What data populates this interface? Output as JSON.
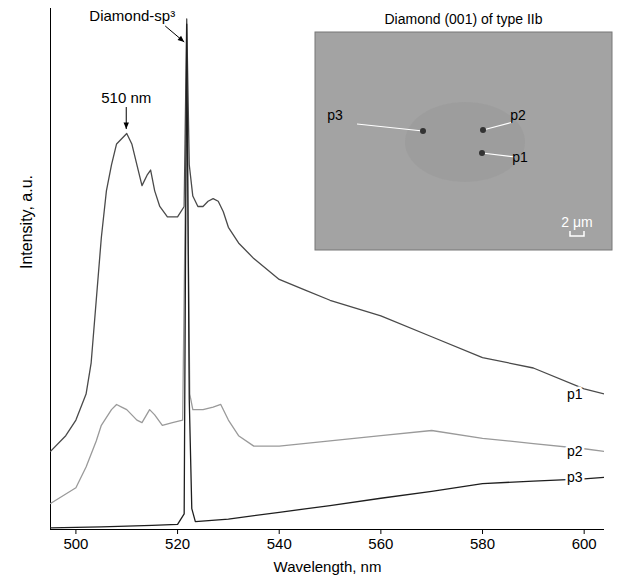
{
  "chart_data": {
    "type": "line",
    "x_label": "Wavelength, nm",
    "y_label": "Intensity, a.u.",
    "xlim": [
      495,
      604
    ],
    "xticks": [
      500,
      520,
      540,
      560,
      580,
      600
    ],
    "ylim": [
      0,
      100
    ],
    "tick_labels": "x",
    "series": [
      {
        "name": "p1",
        "color": "#4a4a4a",
        "x": [
          495,
          498,
          500,
          502,
          503,
          504,
          505,
          506,
          507,
          508,
          509,
          510,
          511,
          512,
          513,
          514,
          514.7,
          515.5,
          516.5,
          518,
          520,
          521.3,
          521.8,
          522.3,
          523,
          524,
          525,
          526,
          527,
          528,
          529,
          530,
          532,
          535,
          540,
          545,
          550,
          560,
          570,
          580,
          590,
          600,
          604
        ],
        "values": [
          15,
          18,
          21,
          26,
          32,
          44,
          56,
          65,
          70,
          74,
          75,
          76,
          74,
          70,
          66,
          68,
          69,
          65,
          62,
          60,
          60,
          62,
          98,
          70,
          64,
          62,
          62,
          63,
          63.5,
          63,
          61,
          58,
          55,
          52,
          48,
          46,
          44,
          41,
          37,
          33,
          31,
          27,
          26
        ]
      },
      {
        "name": "p2",
        "color": "#9a9a9a",
        "x": [
          495,
          500,
          502,
          504,
          505,
          507,
          508,
          509,
          510,
          512,
          513,
          514.5,
          515.5,
          517,
          519,
          521,
          521.8,
          522.4,
          523,
          525,
          527,
          528.5,
          530,
          532,
          535,
          540,
          550,
          560,
          570,
          580,
          590,
          600,
          604
        ],
        "values": [
          5,
          8,
          12,
          17,
          20,
          23,
          24,
          23.5,
          23,
          21,
          20.5,
          23,
          22,
          20,
          20.5,
          21,
          85,
          26,
          23,
          23,
          23.5,
          24,
          21,
          18,
          16,
          16,
          17,
          18,
          19,
          17.5,
          16.5,
          15.5,
          15
        ]
      },
      {
        "name": "p3",
        "color": "#1e1e1e",
        "x": [
          495,
          505,
          515,
          520,
          521.3,
          521.8,
          522.3,
          522.8,
          523.5,
          530,
          540,
          550,
          560,
          570,
          580,
          590,
          600,
          604
        ],
        "values": [
          0.3,
          0.5,
          0.8,
          1,
          3,
          97,
          25,
          4,
          1.5,
          2,
          3.3,
          4.6,
          6,
          7.3,
          8.8,
          9.3,
          9.7,
          10
        ]
      }
    ],
    "annotations": [
      {
        "text": "510 nm",
        "x": 510,
        "y": 76
      },
      {
        "text": "Diamond-sp³",
        "x": 522,
        "y": 98
      }
    ],
    "inset": {
      "title": "Diamond (001) of type IIb",
      "points": [
        "p1",
        "p2",
        "p3"
      ],
      "scale_bar": "2 μm"
    }
  }
}
